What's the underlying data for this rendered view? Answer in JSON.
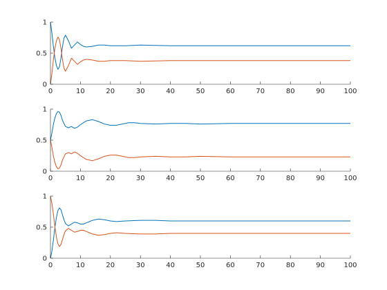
{
  "colors": {
    "blue": "#0072bd",
    "orange": "#d95319",
    "axis": "#262626",
    "background": "#ffffff"
  },
  "chart_data": [
    {
      "type": "line",
      "title": "",
      "xlabel": "",
      "ylabel": "",
      "xlim": [
        0,
        100
      ],
      "ylim": [
        0,
        1
      ],
      "xticks": [
        0,
        10,
        20,
        30,
        40,
        50,
        60,
        70,
        80,
        90,
        100
      ],
      "yticks": [
        0,
        0.5,
        1
      ],
      "xtick_labels": [
        "0",
        "10",
        "20",
        "30",
        "40",
        "50",
        "60",
        "70",
        "80",
        "90",
        "100"
      ],
      "ytick_labels": [
        "0",
        "0.5",
        "1"
      ],
      "grid": false,
      "series": [
        {
          "color": "#0072bd",
          "x": [
            0,
            0.5,
            1,
            1.5,
            2,
            2.5,
            3,
            3.5,
            4,
            4.5,
            5,
            6,
            7,
            8,
            9,
            10,
            11,
            12,
            14,
            16,
            18,
            20,
            25,
            30,
            40,
            50,
            60,
            70,
            80,
            90,
            100
          ],
          "y": [
            1.0,
            0.82,
            0.6,
            0.42,
            0.3,
            0.24,
            0.28,
            0.42,
            0.6,
            0.74,
            0.79,
            0.7,
            0.58,
            0.63,
            0.68,
            0.64,
            0.61,
            0.6,
            0.61,
            0.63,
            0.63,
            0.62,
            0.62,
            0.63,
            0.62,
            0.62,
            0.62,
            0.62,
            0.62,
            0.62,
            0.62
          ]
        },
        {
          "color": "#d95319",
          "x": [
            0,
            0.5,
            1,
            1.5,
            2,
            2.5,
            3,
            3.5,
            4,
            4.5,
            5,
            6,
            7,
            8,
            9,
            10,
            11,
            12,
            14,
            16,
            18,
            20,
            25,
            30,
            40,
            50,
            60,
            70,
            80,
            90,
            100
          ],
          "y": [
            0.0,
            0.18,
            0.4,
            0.58,
            0.7,
            0.76,
            0.72,
            0.58,
            0.4,
            0.26,
            0.21,
            0.3,
            0.42,
            0.37,
            0.32,
            0.36,
            0.39,
            0.4,
            0.39,
            0.37,
            0.37,
            0.38,
            0.38,
            0.37,
            0.38,
            0.38,
            0.38,
            0.38,
            0.38,
            0.38,
            0.38
          ]
        }
      ]
    },
    {
      "type": "line",
      "title": "",
      "xlabel": "",
      "ylabel": "",
      "xlim": [
        0,
        100
      ],
      "ylim": [
        0,
        1
      ],
      "xticks": [
        0,
        10,
        20,
        30,
        40,
        50,
        60,
        70,
        80,
        90,
        100
      ],
      "yticks": [
        0,
        0.5,
        1
      ],
      "xtick_labels": [
        "0",
        "10",
        "20",
        "30",
        "40",
        "50",
        "60",
        "70",
        "80",
        "90",
        "100"
      ],
      "ytick_labels": [
        "0",
        "0.5",
        "1"
      ],
      "grid": false,
      "series": [
        {
          "color": "#0072bd",
          "x": [
            0,
            0.5,
            1,
            1.5,
            2,
            2.5,
            3,
            3.5,
            4,
            5,
            6,
            7,
            8,
            9,
            10,
            12,
            14,
            16,
            18,
            20,
            22,
            24,
            26,
            28,
            30,
            35,
            40,
            45,
            50,
            60,
            70,
            80,
            90,
            100
          ],
          "y": [
            0.5,
            0.62,
            0.76,
            0.86,
            0.93,
            0.96,
            0.95,
            0.9,
            0.82,
            0.72,
            0.7,
            0.72,
            0.69,
            0.71,
            0.75,
            0.81,
            0.83,
            0.8,
            0.76,
            0.74,
            0.74,
            0.76,
            0.78,
            0.78,
            0.77,
            0.76,
            0.77,
            0.77,
            0.76,
            0.77,
            0.77,
            0.77,
            0.77,
            0.77
          ]
        },
        {
          "color": "#d95319",
          "x": [
            0,
            0.5,
            1,
            1.5,
            2,
            2.5,
            3,
            3.5,
            4,
            5,
            6,
            7,
            8,
            9,
            10,
            12,
            14,
            16,
            18,
            20,
            22,
            24,
            26,
            28,
            30,
            35,
            40,
            45,
            50,
            60,
            70,
            80,
            90,
            100
          ],
          "y": [
            0.5,
            0.38,
            0.24,
            0.14,
            0.07,
            0.04,
            0.05,
            0.1,
            0.18,
            0.28,
            0.3,
            0.28,
            0.31,
            0.29,
            0.25,
            0.19,
            0.17,
            0.2,
            0.24,
            0.26,
            0.26,
            0.24,
            0.22,
            0.22,
            0.23,
            0.24,
            0.23,
            0.23,
            0.24,
            0.23,
            0.23,
            0.23,
            0.23,
            0.23
          ]
        }
      ]
    },
    {
      "type": "line",
      "title": "",
      "xlabel": "",
      "ylabel": "",
      "xlim": [
        0,
        100
      ],
      "ylim": [
        0,
        1
      ],
      "xticks": [
        0,
        10,
        20,
        30,
        40,
        50,
        60,
        70,
        80,
        90,
        100
      ],
      "yticks": [
        0,
        0.5,
        1
      ],
      "xtick_labels": [
        "0",
        "10",
        "20",
        "30",
        "40",
        "50",
        "60",
        "70",
        "80",
        "90",
        "100"
      ],
      "ytick_labels": [
        "0",
        "0.5",
        "1"
      ],
      "grid": false,
      "series": [
        {
          "color": "#0072bd",
          "x": [
            0,
            0.5,
            1,
            1.5,
            2,
            2.5,
            3,
            3.5,
            4,
            4.5,
            5,
            6,
            7,
            8,
            9,
            10,
            11,
            12,
            14,
            16,
            18,
            20,
            22,
            25,
            30,
            35,
            40,
            50,
            60,
            70,
            80,
            90,
            100
          ],
          "y": [
            0.0,
            0.12,
            0.3,
            0.5,
            0.66,
            0.77,
            0.81,
            0.78,
            0.7,
            0.62,
            0.56,
            0.52,
            0.55,
            0.58,
            0.57,
            0.55,
            0.55,
            0.57,
            0.61,
            0.63,
            0.62,
            0.6,
            0.59,
            0.6,
            0.61,
            0.61,
            0.6,
            0.6,
            0.6,
            0.6,
            0.6,
            0.6,
            0.6
          ]
        },
        {
          "color": "#d95319",
          "x": [
            0,
            0.5,
            1,
            1.5,
            2,
            2.5,
            3,
            3.5,
            4,
            4.5,
            5,
            6,
            7,
            8,
            9,
            10,
            11,
            12,
            14,
            16,
            18,
            20,
            22,
            25,
            30,
            35,
            40,
            50,
            60,
            70,
            80,
            90,
            100
          ],
          "y": [
            1.0,
            0.88,
            0.7,
            0.5,
            0.34,
            0.23,
            0.19,
            0.22,
            0.3,
            0.38,
            0.44,
            0.48,
            0.45,
            0.42,
            0.43,
            0.45,
            0.45,
            0.43,
            0.39,
            0.37,
            0.38,
            0.4,
            0.41,
            0.4,
            0.39,
            0.39,
            0.4,
            0.4,
            0.4,
            0.4,
            0.4,
            0.4,
            0.4
          ]
        }
      ]
    }
  ]
}
